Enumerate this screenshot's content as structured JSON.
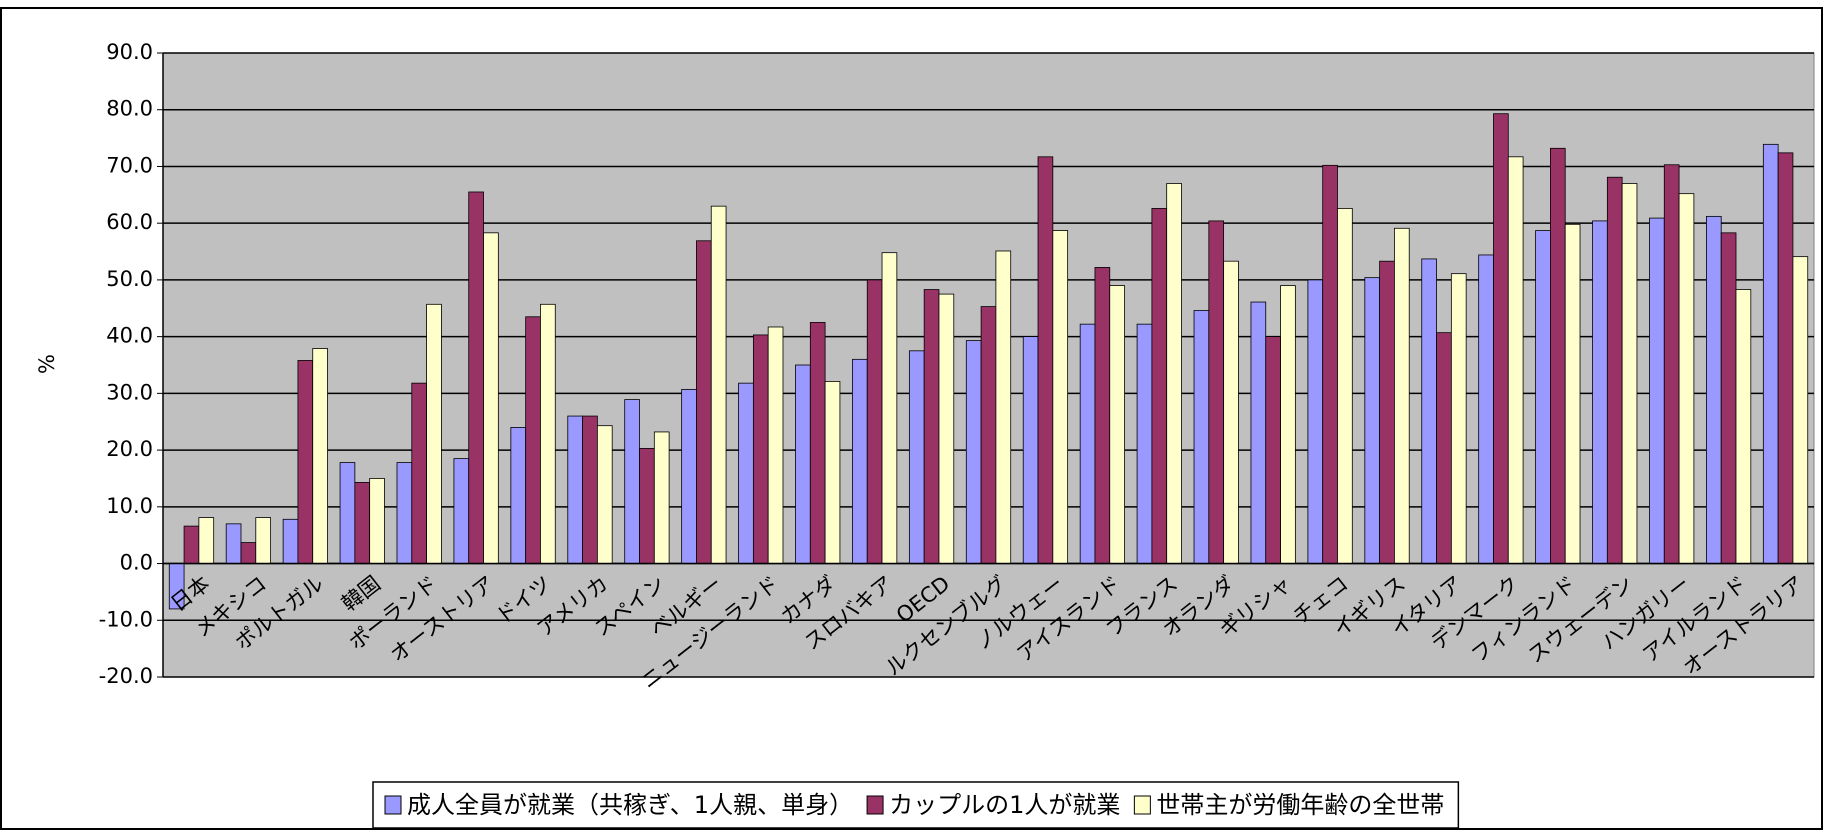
{
  "chart_data": {
    "type": "bar",
    "y_label": "%",
    "categories": [
      "日本",
      "メキシコ",
      "ポルトガル",
      "韓国",
      "ポーランド",
      "オーストリア",
      "ドイツ",
      "アメリカ",
      "スペイン",
      "ベルギー",
      "ニュージーランド",
      "カナダ",
      "スロバキア",
      "OECD",
      "ルクセンブルグ",
      "ノルウェー",
      "アイスランド",
      "フランス",
      "オランダ",
      "ギリシャ",
      "チェコ",
      "イギリス",
      "イタリア",
      "デンマーク",
      "フィンランド",
      "スウェーデン",
      "ハンガリー",
      "アイルランド",
      "オーストラリア"
    ],
    "series": [
      {
        "name": "成人全員が就業（共稼ぎ、1人親、単身）",
        "color": "#9999ff",
        "values": [
          -8,
          7,
          7.8,
          17.8,
          17.8,
          18.5,
          24,
          26,
          28.9,
          30.7,
          31.8,
          35,
          36,
          37.5,
          39.3,
          40,
          42.2,
          42.2,
          44.6,
          46.1,
          50,
          50.4,
          53.7,
          54.4,
          58.7,
          60.4,
          60.9,
          61.2,
          73.9
        ]
      },
      {
        "name": "カップルの1人が就業",
        "color": "#993366",
        "values": [
          6.6,
          3.7,
          35.8,
          14.3,
          31.8,
          65.5,
          43.5,
          26,
          20.3,
          56.9,
          40.3,
          42.5,
          50,
          48.3,
          45.3,
          71.7,
          52.2,
          62.6,
          60.4,
          40,
          70.2,
          53.3,
          40.7,
          79.3,
          73.2,
          68.1,
          70.3,
          58.3,
          72.4
        ]
      },
      {
        "name": "世帯主が労働年齢の全世帯",
        "color": "#ffffcc",
        "values": [
          8.1,
          8.1,
          37.9,
          15,
          45.7,
          58.3,
          45.7,
          24.3,
          23.2,
          63,
          41.7,
          32.1,
          54.8,
          47.5,
          55.1,
          58.7,
          49,
          67,
          53.3,
          49,
          62.6,
          59.1,
          51.1,
          71.7,
          59.8,
          67,
          65.2,
          48.3,
          54.1
        ]
      }
    ],
    "ylim": [
      -20,
      90
    ],
    "yticks": [
      {
        "value": -20,
        "label": "-20.0"
      },
      {
        "value": -10,
        "label": "-10.0"
      },
      {
        "value": 0,
        "label": "0.0"
      },
      {
        "value": 10,
        "label": "10.0"
      },
      {
        "value": 20,
        "label": "20.0"
      },
      {
        "value": 30,
        "label": "30.0"
      },
      {
        "value": 40,
        "label": "40.0"
      },
      {
        "value": 50,
        "label": "50.0"
      },
      {
        "value": 60,
        "label": "60.0"
      },
      {
        "value": 70,
        "label": "70.0"
      },
      {
        "value": 80,
        "label": "80.0"
      },
      {
        "value": 90,
        "label": "90.0"
      }
    ],
    "grid": true,
    "plot_background": "#c0c0c0"
  }
}
